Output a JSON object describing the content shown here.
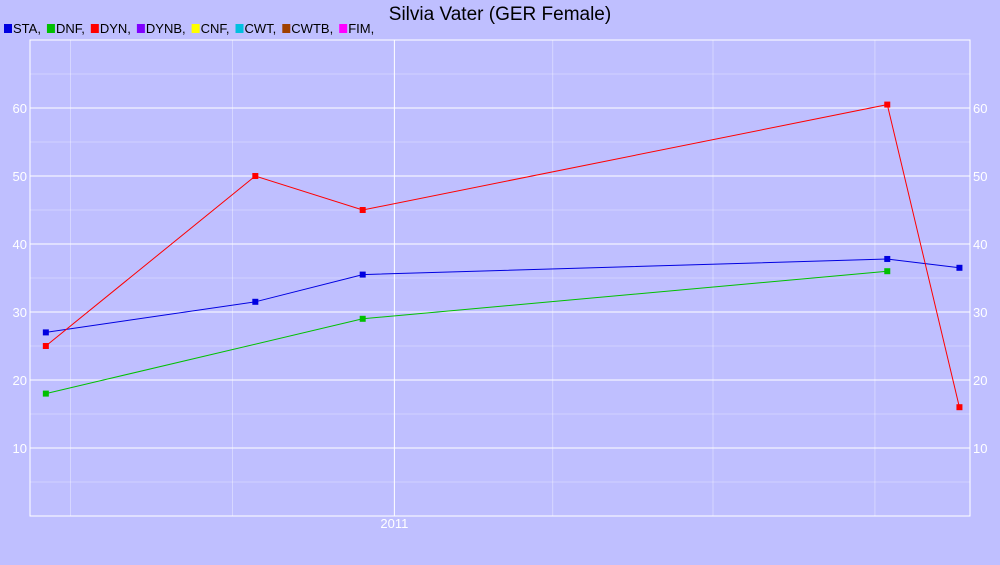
{
  "chart_data": {
    "type": "line",
    "title": "Silvia Vater (GER Female)",
    "xlabel": "",
    "ylabel": "",
    "x_tick_labels": [
      "2011"
    ],
    "y_ticks": [
      10,
      20,
      30,
      40,
      50,
      60
    ],
    "ylim": [
      0,
      70
    ],
    "grid": true,
    "legend_position": "top-left",
    "legend": [
      {
        "name": "STA",
        "label": "STA,",
        "color": "#0000e0"
      },
      {
        "name": "DNF",
        "label": "DNF,",
        "color": "#00c000"
      },
      {
        "name": "DYN",
        "label": "DYN,",
        "color": "#ff0000"
      },
      {
        "name": "DYNB",
        "label": "DYNB,",
        "color": "#8000ff"
      },
      {
        "name": "CNF",
        "label": "CNF,",
        "color": "#ffff00"
      },
      {
        "name": "CWT",
        "label": "CWT,",
        "color": "#00c0e0"
      },
      {
        "name": "CWTB",
        "label": "CWTB,",
        "color": "#a04000"
      },
      {
        "name": "FIM",
        "label": "FIM,",
        "color": "#ff00ff"
      }
    ],
    "series": [
      {
        "name": "STA",
        "color": "#0000e0",
        "points": [
          {
            "x": "2010-06-17",
            "y": 27
          },
          {
            "x": "2010-10-14",
            "y": 31.5
          },
          {
            "x": "2010-12-14",
            "y": 35.5
          },
          {
            "x": "2011-10-08",
            "y": 37.8
          },
          {
            "x": "2011-11-18",
            "y": 36.5
          }
        ]
      },
      {
        "name": "DNF",
        "color": "#00c000",
        "points": [
          {
            "x": "2010-06-17",
            "y": 18
          },
          {
            "x": "2010-12-14",
            "y": 29
          },
          {
            "x": "2011-10-08",
            "y": 36
          }
        ]
      },
      {
        "name": "DYN",
        "color": "#ff0000",
        "points": [
          {
            "x": "2010-06-17",
            "y": 25
          },
          {
            "x": "2010-10-14",
            "y": 50
          },
          {
            "x": "2010-12-14",
            "y": 45
          },
          {
            "x": "2011-10-08",
            "y": 60.5
          },
          {
            "x": "2011-11-18",
            "y": 16
          }
        ]
      }
    ]
  }
}
